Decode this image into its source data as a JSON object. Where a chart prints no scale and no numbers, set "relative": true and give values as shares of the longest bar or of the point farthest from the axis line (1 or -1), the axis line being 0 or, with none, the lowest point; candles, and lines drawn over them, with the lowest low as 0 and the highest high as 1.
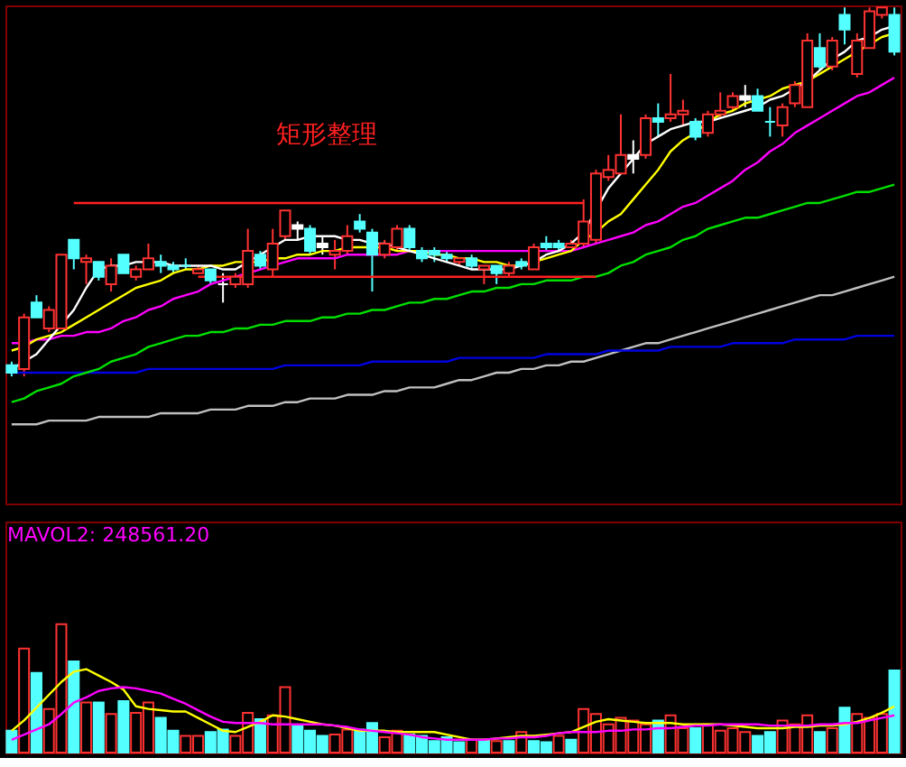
{
  "chart_data": [
    {
      "type": "candlestick",
      "relative": true,
      "categories": [
        null,
        null,
        null,
        null,
        null,
        null,
        null,
        null,
        null,
        null,
        null,
        null,
        null,
        null,
        null,
        null,
        null,
        null,
        null,
        null,
        null,
        null,
        null,
        null,
        null,
        null,
        null,
        null,
        null,
        null,
        null,
        null,
        null,
        null,
        null,
        null,
        null,
        null,
        null,
        null,
        null,
        null,
        null,
        null,
        null,
        null,
        null,
        null,
        null,
        null,
        null,
        null,
        null,
        null,
        null,
        null,
        null,
        null,
        null,
        null,
        null,
        null,
        null,
        null,
        null,
        null,
        null,
        null,
        null,
        null,
        null,
        null
      ],
      "ohlc": [
        [
          0.03,
          0.04,
          0,
          0.01
        ],
        [
          0.02,
          0.17,
          0,
          0.16
        ],
        [
          0.2,
          0.22,
          0.16,
          0.16
        ],
        [
          0.13,
          0.19,
          0.12,
          0.18
        ],
        [
          0.13,
          0.33,
          0.13,
          0.33
        ],
        [
          0.37,
          0.37,
          0.29,
          0.32
        ],
        [
          0.31,
          0.33,
          0.25,
          0.32
        ],
        [
          0.31,
          0.31,
          0.26,
          0.27
        ],
        [
          0.25,
          0.32,
          0.23,
          0.3
        ],
        [
          0.33,
          0.33,
          0.28,
          0.28
        ],
        [
          0.27,
          0.3,
          0.26,
          0.29
        ],
        [
          0.29,
          0.36,
          0.29,
          0.32
        ],
        [
          0.31,
          0.33,
          0.28,
          0.3
        ],
        [
          0.3,
          0.31,
          0.28,
          0.29
        ],
        [
          0.3,
          0.32,
          0.29,
          0.3
        ],
        [
          0.28,
          0.3,
          0.28,
          0.29
        ],
        [
          0.29,
          0.29,
          0.25,
          0.26
        ],
        [
          0.25,
          0.28,
          0.2,
          0.25
        ],
        [
          0.25,
          0.28,
          0.24,
          0.27
        ],
        [
          0.25,
          0.4,
          0.24,
          0.34
        ],
        [
          0.33,
          0.34,
          0.29,
          0.3
        ],
        [
          0.29,
          0.4,
          0.27,
          0.36
        ],
        [
          0.38,
          0.45,
          0.37,
          0.45
        ],
        [
          0.41,
          0.42,
          0.37,
          0.4
        ],
        [
          0.4,
          0.41,
          0.33,
          0.34
        ],
        [
          0.36,
          0.38,
          0.33,
          0.35
        ],
        [
          0.33,
          0.37,
          0.29,
          0.34
        ],
        [
          0.34,
          0.41,
          0.33,
          0.38
        ],
        [
          0.42,
          0.44,
          0.39,
          0.4
        ],
        [
          0.39,
          0.4,
          0.23,
          0.33
        ],
        [
          0.33,
          0.37,
          0.32,
          0.36
        ],
        [
          0.35,
          0.41,
          0.34,
          0.4
        ],
        [
          0.4,
          0.41,
          0.34,
          0.35
        ],
        [
          0.34,
          0.35,
          0.31,
          0.32
        ],
        [
          0.34,
          0.35,
          0.31,
          0.33
        ],
        [
          0.33,
          0.34,
          0.31,
          0.32
        ],
        [
          0.31,
          0.32,
          0.3,
          0.32
        ],
        [
          0.32,
          0.33,
          0.29,
          0.3
        ],
        [
          0.29,
          0.3,
          0.25,
          0.3
        ],
        [
          0.3,
          0.3,
          0.25,
          0.28
        ],
        [
          0.28,
          0.31,
          0.27,
          0.3
        ],
        [
          0.31,
          0.32,
          0.29,
          0.3
        ],
        [
          0.29,
          0.36,
          0.29,
          0.35
        ],
        [
          0.36,
          0.38,
          0.34,
          0.35
        ],
        [
          0.36,
          0.37,
          0.34,
          0.35
        ],
        [
          0.35,
          0.37,
          0.35,
          0.36
        ],
        [
          0.36,
          0.48,
          0.35,
          0.42
        ],
        [
          0.37,
          0.56,
          0.36,
          0.55
        ],
        [
          0.54,
          0.6,
          0.53,
          0.56
        ],
        [
          0.55,
          0.71,
          0.55,
          0.6
        ],
        [
          0.6,
          0.64,
          0.55,
          0.59
        ],
        [
          0.6,
          0.71,
          0.59,
          0.7
        ],
        [
          0.7,
          0.74,
          0.65,
          0.69
        ],
        [
          0.7,
          0.82,
          0.69,
          0.71
        ],
        [
          0.71,
          0.75,
          0.68,
          0.72
        ],
        [
          0.69,
          0.7,
          0.64,
          0.65
        ],
        [
          0.66,
          0.72,
          0.65,
          0.71
        ],
        [
          0.71,
          0.77,
          0.7,
          0.72
        ],
        [
          0.73,
          0.77,
          0.72,
          0.76
        ],
        [
          0.76,
          0.79,
          0.73,
          0.75
        ],
        [
          0.76,
          0.78,
          0.72,
          0.72
        ],
        [
          0.69,
          0.73,
          0.65,
          0.69
        ],
        [
          0.68,
          0.74,
          0.65,
          0.73
        ],
        [
          0.74,
          0.8,
          0.73,
          0.79
        ],
        [
          0.73,
          0.93,
          0.73,
          0.91
        ],
        [
          0.89,
          0.93,
          0.83,
          0.84
        ],
        [
          0.84,
          0.92,
          0.83,
          0.91
        ],
        [
          0.98,
          1,
          0.9,
          0.94
        ],
        [
          0.82,
          0.93,
          0.81,
          0.91
        ],
        [
          0.89,
          1,
          0.89,
          0.99
        ],
        [
          0.98,
          1,
          0.97,
          1
        ],
        [
          0.98,
          1,
          0.87,
          0.88
        ]
      ],
      "colors": [
        "#54ffff",
        "#ff3232",
        "#54ffff",
        "#ff3232",
        "#ff3232",
        "#54ffff",
        "#ff3232",
        "#54ffff",
        "#ff3232",
        "#54ffff",
        "#ff3232",
        "#ff3232",
        "#54ffff",
        "#54ffff",
        "#54ffff",
        "#ff3232",
        "#54ffff",
        "#ffffff",
        "#ff3232",
        "#ff3232",
        "#54ffff",
        "#ff3232",
        "#ff3232",
        "#ffffff",
        "#54ffff",
        "#ffffff",
        "#ff3232",
        "#ff3232",
        "#54ffff",
        "#54ffff",
        "#ff3232",
        "#ff3232",
        "#54ffff",
        "#54ffff",
        "#54ffff",
        "#54ffff",
        "#ff3232",
        "#54ffff",
        "#ff3232",
        "#54ffff",
        "#ff3232",
        "#54ffff",
        "#ff3232",
        "#54ffff",
        "#54ffff",
        "#ff3232",
        "#ff3232",
        "#ff3232",
        "#ff3232",
        "#ff3232",
        "#ffffff",
        "#ff3232",
        "#54ffff",
        "#ff3232",
        "#ff3232",
        "#54ffff",
        "#ff3232",
        "#ff3232",
        "#ff3232",
        "#ffffff",
        "#54ffff",
        "#54ffff",
        "#ff3232",
        "#ff3232",
        "#ff3232",
        "#54ffff",
        "#ff3232",
        "#54ffff",
        "#ff3232",
        "#ff3232",
        "#ff3232",
        "#54ffff"
      ],
      "series": [
        {
          "type": "line",
          "color": "#c0c0c0",
          "values": [
            -0.13,
            -0.13,
            -0.13,
            -0.12,
            -0.12,
            -0.12,
            -0.12,
            -0.11,
            -0.11,
            -0.11,
            -0.11,
            -0.11,
            -0.1,
            -0.1,
            -0.1,
            -0.1,
            -0.09,
            -0.09,
            -0.09,
            -0.08,
            -0.08,
            -0.08,
            -0.07,
            -0.07,
            -0.06,
            -0.06,
            -0.06,
            -0.05,
            -0.05,
            -0.05,
            -0.04,
            -0.04,
            -0.03,
            -0.03,
            -0.03,
            -0.02,
            -0.01,
            -0.01,
            0,
            0.01,
            0.01,
            0.02,
            0.02,
            0.03,
            0.03,
            0.04,
            0.04,
            0.05,
            0.06,
            0.07,
            0.08,
            0.09,
            0.09,
            0.1,
            0.11,
            0.12,
            0.13,
            0.14,
            0.15,
            0.16,
            0.17,
            0.18,
            0.19,
            0.2,
            0.21,
            0.22,
            0.22,
            0.23,
            0.24,
            0.25,
            0.26,
            0.27
          ]
        },
        {
          "type": "line",
          "color": "#0000e0",
          "values": [
            0.01,
            0.01,
            0.01,
            0.01,
            0.01,
            0.01,
            0.01,
            0.01,
            0.01,
            0.01,
            0.01,
            0.02,
            0.02,
            0.02,
            0.02,
            0.02,
            0.02,
            0.02,
            0.02,
            0.02,
            0.02,
            0.02,
            0.03,
            0.03,
            0.03,
            0.03,
            0.03,
            0.03,
            0.03,
            0.04,
            0.04,
            0.04,
            0.04,
            0.04,
            0.04,
            0.04,
            0.05,
            0.05,
            0.05,
            0.05,
            0.05,
            0.05,
            0.05,
            0.06,
            0.06,
            0.06,
            0.06,
            0.06,
            0.07,
            0.07,
            0.07,
            0.07,
            0.07,
            0.08,
            0.08,
            0.08,
            0.08,
            0.08,
            0.09,
            0.09,
            0.09,
            0.09,
            0.09,
            0.1,
            0.1,
            0.1,
            0.1,
            0.1,
            0.11,
            0.11,
            0.11,
            0.11
          ]
        },
        {
          "type": "line",
          "color": "#00e000",
          "values": [
            -0.07,
            -0.06,
            -0.04,
            -0.03,
            -0.02,
            0,
            0.01,
            0.02,
            0.04,
            0.05,
            0.06,
            0.08,
            0.09,
            0.1,
            0.11,
            0.11,
            0.12,
            0.12,
            0.13,
            0.13,
            0.14,
            0.14,
            0.15,
            0.15,
            0.15,
            0.16,
            0.16,
            0.17,
            0.17,
            0.18,
            0.18,
            0.19,
            0.2,
            0.2,
            0.21,
            0.21,
            0.22,
            0.23,
            0.23,
            0.24,
            0.24,
            0.25,
            0.25,
            0.26,
            0.26,
            0.26,
            0.27,
            0.27,
            0.28,
            0.3,
            0.31,
            0.33,
            0.34,
            0.35,
            0.37,
            0.38,
            0.4,
            0.41,
            0.42,
            0.43,
            0.43,
            0.44,
            0.45,
            0.46,
            0.47,
            0.47,
            0.48,
            0.49,
            0.5,
            0.5,
            0.51,
            0.52
          ]
        },
        {
          "type": "line",
          "color": "#ff00ff",
          "values": [
            0.09,
            0.09,
            0.1,
            0.1,
            0.11,
            0.11,
            0.12,
            0.12,
            0.13,
            0.15,
            0.16,
            0.18,
            0.19,
            0.21,
            0.22,
            0.23,
            0.25,
            0.26,
            0.27,
            0.28,
            0.29,
            0.3,
            0.31,
            0.32,
            0.32,
            0.32,
            0.32,
            0.33,
            0.33,
            0.33,
            0.33,
            0.33,
            0.34,
            0.34,
            0.34,
            0.34,
            0.34,
            0.34,
            0.34,
            0.34,
            0.34,
            0.34,
            0.34,
            0.34,
            0.34,
            0.34,
            0.35,
            0.36,
            0.37,
            0.38,
            0.39,
            0.41,
            0.42,
            0.44,
            0.46,
            0.47,
            0.49,
            0.51,
            0.53,
            0.56,
            0.58,
            0.61,
            0.63,
            0.66,
            0.68,
            0.7,
            0.72,
            0.74,
            0.76,
            0.77,
            0.79,
            0.81
          ]
        },
        {
          "type": "line",
          "color": "#ffff00",
          "values": [
            0.07,
            0.08,
            0.1,
            0.11,
            0.12,
            0.14,
            0.16,
            0.18,
            0.2,
            0.22,
            0.24,
            0.25,
            0.26,
            0.28,
            0.29,
            0.29,
            0.3,
            0.3,
            0.31,
            0.31,
            0.31,
            0.32,
            0.32,
            0.33,
            0.33,
            0.34,
            0.34,
            0.35,
            0.35,
            0.35,
            0.35,
            0.34,
            0.34,
            0.34,
            0.33,
            0.33,
            0.32,
            0.32,
            0.31,
            0.31,
            0.3,
            0.3,
            0.31,
            0.32,
            0.33,
            0.34,
            0.37,
            0.39,
            0.42,
            0.44,
            0.48,
            0.52,
            0.56,
            0.61,
            0.64,
            0.66,
            0.69,
            0.71,
            0.72,
            0.74,
            0.75,
            0.76,
            0.78,
            0.79,
            0.8,
            0.82,
            0.84,
            0.86,
            0.88,
            0.9,
            0.92,
            0.93
          ]
        },
        {
          "type": "line",
          "color": "#ffffff",
          "values": [
            0.02,
            0.04,
            0.06,
            0.1,
            0.14,
            0.18,
            0.24,
            0.29,
            0.3,
            0.3,
            0.31,
            0.31,
            0.31,
            0.3,
            0.3,
            0.3,
            0.3,
            0.29,
            0.29,
            0.31,
            0.33,
            0.35,
            0.37,
            0.37,
            0.38,
            0.38,
            0.38,
            0.37,
            0.37,
            0.36,
            0.36,
            0.35,
            0.34,
            0.33,
            0.32,
            0.31,
            0.3,
            0.29,
            0.29,
            0.29,
            0.29,
            0.3,
            0.31,
            0.33,
            0.34,
            0.36,
            0.39,
            0.45,
            0.51,
            0.55,
            0.59,
            0.63,
            0.65,
            0.67,
            0.68,
            0.69,
            0.69,
            0.7,
            0.71,
            0.72,
            0.73,
            0.75,
            0.76,
            0.78,
            0.8,
            0.83,
            0.86,
            0.88,
            0.91,
            0.92,
            0.94,
            0.95
          ]
        },
        {
          "type": "line",
          "color": "#ff2020",
          "values": [
            null,
            null,
            null,
            null,
            null,
            0.47,
            0.47,
            0.47,
            0.47,
            0.47,
            0.47,
            0.47,
            0.47,
            0.47,
            0.47,
            0.47,
            0.47,
            0.47,
            0.47,
            0.47,
            0.47,
            0.47,
            0.47,
            0.47,
            0.47,
            0.47,
            0.47,
            0.47,
            0.47,
            0.47,
            0.47,
            0.47,
            0.47,
            0.47,
            0.47,
            0.47,
            0.47,
            0.47,
            0.47,
            0.47,
            0.47,
            0.47,
            0.47,
            0.47,
            0.47,
            0.47,
            0.47,
            null,
            null,
            null,
            null,
            null,
            null,
            null,
            null,
            null,
            null,
            null,
            null,
            null,
            null,
            null,
            null,
            null,
            null,
            null,
            null,
            null,
            null,
            null,
            null,
            null
          ]
        },
        {
          "type": "line",
          "color": "#ff2020",
          "values": [
            null,
            null,
            null,
            null,
            null,
            null,
            null,
            null,
            null,
            null,
            null,
            null,
            null,
            null,
            null,
            0.27,
            0.27,
            0.27,
            0.27,
            0.27,
            0.27,
            0.27,
            0.27,
            0.27,
            0.27,
            0.27,
            0.27,
            0.27,
            0.27,
            0.27,
            0.27,
            0.27,
            0.27,
            0.27,
            0.27,
            0.27,
            0.27,
            0.27,
            0.27,
            0.27,
            0.27,
            0.27,
            0.27,
            0.27,
            0.27,
            0.27,
            0.27,
            0.27,
            null,
            null,
            null,
            null,
            null,
            null,
            null,
            null,
            null,
            null,
            null,
            null,
            null,
            null,
            null,
            null,
            null,
            null,
            null,
            null,
            null,
            null,
            null,
            null
          ]
        }
      ],
      "annotations": [
        "矩形整理"
      ]
    },
    {
      "type": "bar",
      "relative": true,
      "categories": [
        null,
        null,
        null,
        null,
        null,
        null,
        null,
        null,
        null,
        null,
        null,
        null,
        null,
        null,
        null,
        null,
        null,
        null,
        null,
        null,
        null,
        null,
        null,
        null,
        null,
        null,
        null,
        null,
        null,
        null,
        null,
        null,
        null,
        null,
        null,
        null,
        null,
        null,
        null,
        null,
        null,
        null,
        null,
        null,
        null,
        null,
        null,
        null,
        null,
        null,
        null,
        null,
        null,
        null,
        null,
        null,
        null,
        null,
        null,
        null,
        null,
        null,
        null,
        null,
        null,
        null,
        null,
        null,
        null,
        null,
        null,
        null
      ],
      "values": [
        0.17,
        0.81,
        0.62,
        0.34,
        1.0,
        0.71,
        0.39,
        0.39,
        0.3,
        0.4,
        0.31,
        0.39,
        0.27,
        0.17,
        0.13,
        0.13,
        0.16,
        0.18,
        0.13,
        0.31,
        0.26,
        0.29,
        0.51,
        0.21,
        0.17,
        0.13,
        0.14,
        0.18,
        0.18,
        0.23,
        0.12,
        0.17,
        0.14,
        0.13,
        0.09,
        0.12,
        0.08,
        0.1,
        0.1,
        0.09,
        0.09,
        0.16,
        0.09,
        0.08,
        0.13,
        0.1,
        0.34,
        0.3,
        0.22,
        0.27,
        0.25,
        0.22,
        0.25,
        0.29,
        0.19,
        0.19,
        0.22,
        0.17,
        0.19,
        0.16,
        0.13,
        0.16,
        0.25,
        0.22,
        0.29,
        0.16,
        0.19,
        0.35,
        0.3,
        0.27,
        0.3,
        0.64
      ],
      "colors": [
        "#54ffff",
        "#ff3232",
        "#54ffff",
        "#ff3232",
        "#ff3232",
        "#54ffff",
        "#ff3232",
        "#54ffff",
        "#ff3232",
        "#54ffff",
        "#ff3232",
        "#ff3232",
        "#54ffff",
        "#54ffff",
        "#ff3232",
        "#ff3232",
        "#54ffff",
        "#54ffff",
        "#ff3232",
        "#ff3232",
        "#54ffff",
        "#ff3232",
        "#ff3232",
        "#54ffff",
        "#54ffff",
        "#54ffff",
        "#ff3232",
        "#ff3232",
        "#54ffff",
        "#54ffff",
        "#ff3232",
        "#ff3232",
        "#54ffff",
        "#54ffff",
        "#54ffff",
        "#54ffff",
        "#54ffff",
        "#ff3232",
        "#54ffff",
        "#ff3232",
        "#54ffff",
        "#ff3232",
        "#54ffff",
        "#54ffff",
        "#ff3232",
        "#54ffff",
        "#ff3232",
        "#ff3232",
        "#ff3232",
        "#ff3232",
        "#ff3232",
        "#ff3232",
        "#54ffff",
        "#ff3232",
        "#ff3232",
        "#54ffff",
        "#ff3232",
        "#ff3232",
        "#ff3232",
        "#ff3232",
        "#54ffff",
        "#54ffff",
        "#ff3232",
        "#ff3232",
        "#ff3232",
        "#54ffff",
        "#ff3232",
        "#54ffff",
        "#ff3232",
        "#ff3232",
        "#ff3232",
        "#54ffff"
      ],
      "series": [
        {
          "type": "line",
          "color": "#ffff00",
          "values": [
            0.17,
            0.25,
            0.35,
            0.45,
            0.55,
            0.63,
            0.65,
            0.6,
            0.55,
            0.49,
            0.36,
            0.34,
            0.33,
            0.32,
            0.32,
            0.27,
            0.22,
            0.17,
            0.16,
            0.2,
            0.24,
            0.29,
            0.28,
            0.26,
            0.24,
            0.22,
            0.21,
            0.19,
            0.17,
            0.17,
            0.17,
            0.16,
            0.16,
            0.16,
            0.16,
            0.14,
            0.12,
            0.1,
            0.1,
            0.11,
            0.12,
            0.13,
            0.13,
            0.14,
            0.15,
            0.16,
            0.2,
            0.24,
            0.26,
            0.25,
            0.24,
            0.23,
            0.23,
            0.23,
            0.22,
            0.22,
            0.22,
            0.22,
            0.21,
            0.2,
            0.19,
            0.19,
            0.19,
            0.2,
            0.2,
            0.21,
            0.21,
            0.22,
            0.24,
            0.27,
            0.31,
            0.36
          ]
        },
        {
          "type": "line",
          "color": "#ff00ff",
          "values": [
            0.1,
            0.14,
            0.18,
            0.22,
            0.3,
            0.39,
            0.43,
            0.48,
            0.5,
            0.51,
            0.5,
            0.48,
            0.46,
            0.42,
            0.38,
            0.33,
            0.28,
            0.24,
            0.23,
            0.23,
            0.23,
            0.22,
            0.22,
            0.22,
            0.22,
            0.22,
            0.21,
            0.2,
            0.18,
            0.17,
            0.16,
            0.15,
            0.14,
            0.12,
            0.11,
            0.1,
            0.1,
            0.1,
            0.1,
            0.11,
            0.11,
            0.12,
            0.12,
            0.13,
            0.15,
            0.16,
            0.16,
            0.16,
            0.17,
            0.17,
            0.18,
            0.18,
            0.19,
            0.19,
            0.2,
            0.21,
            0.21,
            0.22,
            0.22,
            0.22,
            0.22,
            0.21,
            0.21,
            0.21,
            0.21,
            0.22,
            0.22,
            0.23,
            0.23,
            0.25,
            0.27,
            0.29
          ]
        }
      ],
      "annotations": [
        "MAVOL2: 248561.20"
      ]
    }
  ]
}
